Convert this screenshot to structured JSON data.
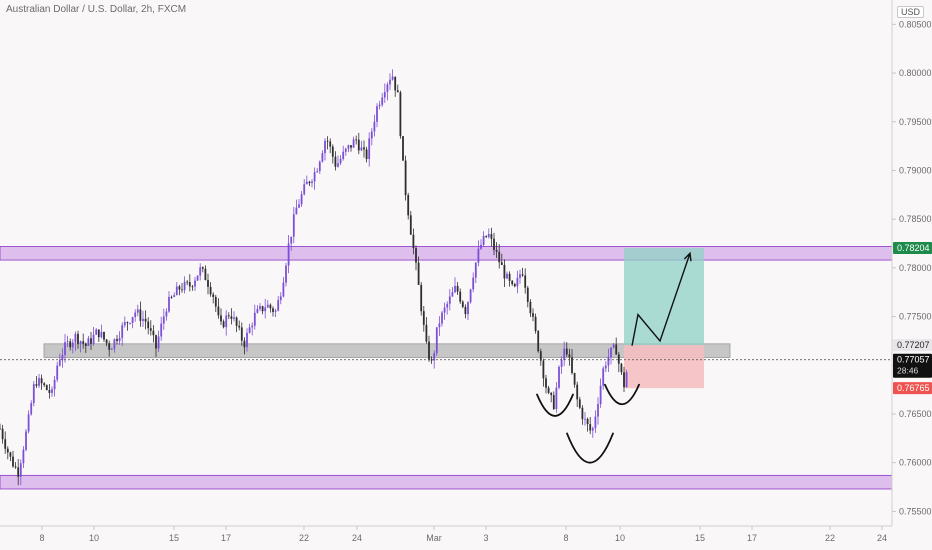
{
  "header": {
    "title": "Australian Dollar / U.S. Dollar, 2h, FXCM",
    "currency": "USD"
  },
  "colors": {
    "background": "#faf7f9",
    "candle": "#7b4fd6",
    "candle_dark": "#2e2e2e",
    "zone_fill": "#d8b4ea",
    "zone_border": "#8e39c9",
    "support_fill": "#b5b5b5",
    "target_fill": "#8fd2c6",
    "stop_fill": "#f4bcc0",
    "price_tag": "#111111",
    "stop_tag": "#ef5350",
    "resistance_tag": "#1e8a4c"
  },
  "chart_data": {
    "type": "candlestick",
    "ylim": [
      0.7535,
      0.8075
    ],
    "xlim": [
      0,
      932
    ],
    "y_ticks": [
      "0.75500",
      "0.76000",
      "0.76500",
      "0.77000",
      "0.77500",
      "0.78000",
      "0.78500",
      "0.79000",
      "0.79500",
      "0.80000",
      "0.80500"
    ],
    "y_tick_values": [
      0.755,
      0.76,
      0.765,
      0.77,
      0.775,
      0.78,
      0.785,
      0.79,
      0.795,
      0.8,
      0.805
    ],
    "x_ticks": [
      {
        "label": "8",
        "t": 42
      },
      {
        "label": "10",
        "t": 94
      },
      {
        "label": "15",
        "t": 174
      },
      {
        "label": "17",
        "t": 226
      },
      {
        "label": "22",
        "t": 304
      },
      {
        "label": "24",
        "t": 357
      },
      {
        "label": "Mar",
        "t": 434
      },
      {
        "label": "3",
        "t": 486
      },
      {
        "label": "8",
        "t": 566
      },
      {
        "label": "10",
        "t": 620
      },
      {
        "label": "15",
        "t": 700
      },
      {
        "label": "17",
        "t": 752
      },
      {
        "label": "22",
        "t": 830
      },
      {
        "label": "24",
        "t": 882
      }
    ],
    "anchors": [
      [
        0,
        0.7635
      ],
      [
        10,
        0.7605
      ],
      [
        18,
        0.759
      ],
      [
        28,
        0.764
      ],
      [
        35,
        0.7685
      ],
      [
        42,
        0.768
      ],
      [
        52,
        0.767
      ],
      [
        58,
        0.7705
      ],
      [
        66,
        0.772
      ],
      [
        76,
        0.773
      ],
      [
        86,
        0.772
      ],
      [
        98,
        0.7735
      ],
      [
        110,
        0.7718
      ],
      [
        122,
        0.7738
      ],
      [
        135,
        0.7755
      ],
      [
        146,
        0.7745
      ],
      [
        156,
        0.7718
      ],
      [
        166,
        0.776
      ],
      [
        180,
        0.778
      ],
      [
        190,
        0.7782
      ],
      [
        200,
        0.7798
      ],
      [
        206,
        0.779
      ],
      [
        214,
        0.777
      ],
      [
        220,
        0.7738
      ],
      [
        230,
        0.7755
      ],
      [
        244,
        0.7722
      ],
      [
        254,
        0.775
      ],
      [
        266,
        0.7762
      ],
      [
        276,
        0.7755
      ],
      [
        282,
        0.7782
      ],
      [
        288,
        0.782
      ],
      [
        296,
        0.786
      ],
      [
        306,
        0.7885
      ],
      [
        316,
        0.79
      ],
      [
        326,
        0.7935
      ],
      [
        336,
        0.7905
      ],
      [
        346,
        0.792
      ],
      [
        356,
        0.7932
      ],
      [
        366,
        0.7912
      ],
      [
        376,
        0.7962
      ],
      [
        384,
        0.7985
      ],
      [
        392,
        0.8
      ],
      [
        398,
        0.7975
      ],
      [
        404,
        0.789
      ],
      [
        412,
        0.783
      ],
      [
        420,
        0.777
      ],
      [
        426,
        0.772
      ],
      [
        432,
        0.77
      ],
      [
        438,
        0.7742
      ],
      [
        446,
        0.776
      ],
      [
        456,
        0.778
      ],
      [
        466,
        0.7755
      ],
      [
        472,
        0.779
      ],
      [
        480,
        0.7822
      ],
      [
        488,
        0.7835
      ],
      [
        496,
        0.7815
      ],
      [
        506,
        0.779
      ],
      [
        514,
        0.7775
      ],
      [
        522,
        0.78
      ],
      [
        530,
        0.776
      ],
      [
        536,
        0.773
      ],
      [
        542,
        0.77
      ],
      [
        548,
        0.7668
      ],
      [
        554,
        0.766
      ],
      [
        560,
        0.77
      ],
      [
        566,
        0.772
      ],
      [
        572,
        0.769
      ],
      [
        578,
        0.766
      ],
      [
        586,
        0.764
      ],
      [
        592,
        0.763
      ],
      [
        598,
        0.7665
      ],
      [
        604,
        0.77
      ],
      [
        610,
        0.7712
      ],
      [
        616,
        0.7718
      ],
      [
        620,
        0.7695
      ],
      [
        624,
        0.768
      ],
      [
        628,
        0.77
      ]
    ],
    "current_price": 0.77057,
    "price_labels": [
      {
        "value": 0.78204,
        "label": "0.78204",
        "kind": "resistance"
      },
      {
        "value": 0.77207,
        "label": "0.77207",
        "kind": "support"
      },
      {
        "value": 0.77057,
        "label": "0.77057",
        "kind": "current"
      },
      {
        "value": 0.76765,
        "label": "0.76765",
        "kind": "stop"
      }
    ],
    "countdown": "28:46",
    "zones": [
      {
        "name": "resistance-zone",
        "y1": 0.7808,
        "y2": 0.7822,
        "x1": 0,
        "x2": 892
      },
      {
        "name": "support-zone-top",
        "y1": 0.7708,
        "y2": 0.7722,
        "x1": 44,
        "x2": 730
      },
      {
        "name": "support-zone-bottom",
        "y1": 0.7573,
        "y2": 0.7587,
        "x1": 0,
        "x2": 892
      }
    ],
    "position": {
      "x1": 624,
      "x2": 704,
      "entry": 0.77207,
      "target": 0.78204,
      "stop": 0.76765
    },
    "projection": [
      [
        632,
        0.772
      ],
      [
        638,
        0.7752
      ],
      [
        660,
        0.7725
      ],
      [
        690,
        0.7815
      ]
    ],
    "head_shoulders": {
      "left": {
        "cx": 555,
        "cy": 0.767,
        "rx": 18,
        "ry": 0.0022
      },
      "head": {
        "cx": 590,
        "cy": 0.763,
        "rx": 23,
        "ry": 0.003
      },
      "right": {
        "cx": 622,
        "cy": 0.768,
        "rx": 17,
        "ry": 0.002
      }
    }
  }
}
